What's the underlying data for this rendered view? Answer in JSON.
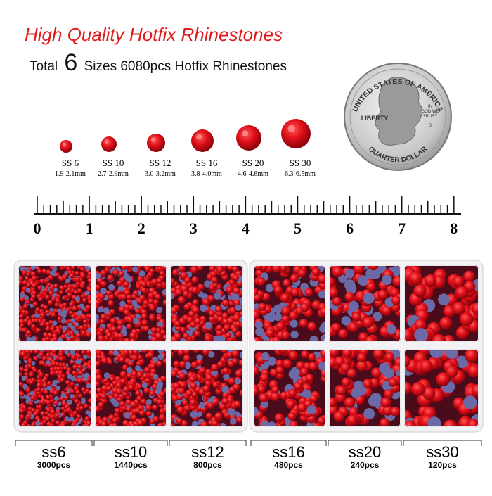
{
  "header": {
    "title": "High Quality Hotfix Rhinestones",
    "subtitle": {
      "lead": "Total",
      "count": "6",
      "rest": "Sizes 6080pcs Hotfix Rhinestones"
    }
  },
  "sizes": [
    {
      "name": "SS 6",
      "range": "1.9-2.1mm"
    },
    {
      "name": "SS 10",
      "range": "2.7-2.9mm"
    },
    {
      "name": "SS 12",
      "range": "3.0-3.2mm"
    },
    {
      "name": "SS 16",
      "range": "3.8-4.0mm"
    },
    {
      "name": "SS 20",
      "range": "4.6-4.8mm"
    },
    {
      "name": "SS 30",
      "range": "6.3-6.5mm"
    }
  ],
  "coin": {
    "country": "UNITED STATES OF AMERICA",
    "liberty": "LIBERTY",
    "motto": [
      "IN",
      "GOD WE",
      "TRUST"
    ],
    "mint": "S",
    "denomination": "QUARTER DOLLAR"
  },
  "ruler": {
    "labels": [
      "0",
      "1",
      "2",
      "3",
      "4",
      "5",
      "6",
      "7",
      "8"
    ]
  },
  "compartments": [
    {
      "name": "ss6",
      "count": "3000pcs"
    },
    {
      "name": "ss10",
      "count": "1440pcs"
    },
    {
      "name": "ss12",
      "count": "800pcs"
    },
    {
      "name": "ss16",
      "count": "480pcs"
    },
    {
      "name": "ss20",
      "count": "240pcs"
    },
    {
      "name": "ss30",
      "count": "120pcs"
    }
  ]
}
